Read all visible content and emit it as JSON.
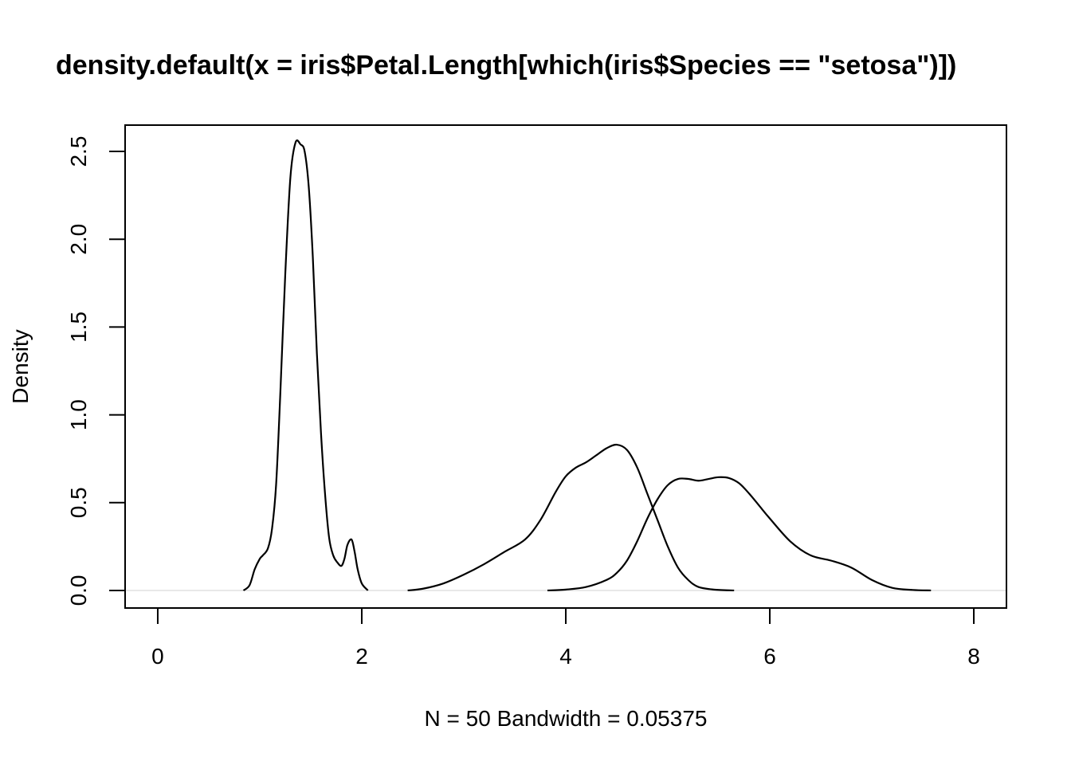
{
  "chart_data": {
    "type": "line",
    "title": "density.default(x = iris$Petal.Length[which(iris$Species == \"setosa\")])",
    "xlabel": "N = 50   Bandwidth = 0.05375",
    "ylabel": "Density",
    "xlim": [
      -0.32,
      8.32
    ],
    "ylim": [
      -0.1,
      2.65
    ],
    "x_ticks": [
      0,
      2,
      4,
      6,
      8
    ],
    "x_tick_labels": [
      "0",
      "2",
      "4",
      "6",
      "8"
    ],
    "y_ticks": [
      0.0,
      0.5,
      1.0,
      1.5,
      2.0,
      2.5
    ],
    "y_tick_labels": [
      "0.0",
      "0.5",
      "1.0",
      "1.5",
      "2.0",
      "2.5"
    ],
    "zero_line": true,
    "grid": false,
    "line_color": "#000000",
    "baseline_color": "#e8e8e8",
    "series": [
      {
        "x": [
          0.84,
          0.9,
          0.95,
          1.0,
          1.03,
          1.08,
          1.12,
          1.16,
          1.2,
          1.25,
          1.3,
          1.35,
          1.4,
          1.44,
          1.48,
          1.52,
          1.56,
          1.6,
          1.64,
          1.68,
          1.72,
          1.76,
          1.8,
          1.83,
          1.86,
          1.9,
          1.93,
          1.96,
          2.0,
          2.06
        ],
        "y": [
          0.0,
          0.03,
          0.12,
          0.18,
          0.2,
          0.24,
          0.35,
          0.6,
          1.1,
          1.8,
          2.35,
          2.55,
          2.54,
          2.5,
          2.3,
          1.9,
          1.35,
          0.9,
          0.55,
          0.3,
          0.2,
          0.16,
          0.14,
          0.18,
          0.26,
          0.29,
          0.22,
          0.12,
          0.04,
          0.0
        ]
      },
      {
        "x": [
          2.45,
          2.6,
          2.8,
          3.0,
          3.2,
          3.4,
          3.6,
          3.75,
          3.9,
          4.0,
          4.1,
          4.2,
          4.3,
          4.4,
          4.5,
          4.6,
          4.7,
          4.8,
          4.9,
          5.0,
          5.1,
          5.2,
          5.3,
          5.45,
          5.65
        ],
        "y": [
          0.0,
          0.01,
          0.04,
          0.09,
          0.15,
          0.22,
          0.29,
          0.4,
          0.56,
          0.65,
          0.7,
          0.73,
          0.77,
          0.81,
          0.83,
          0.8,
          0.7,
          0.55,
          0.4,
          0.25,
          0.13,
          0.06,
          0.02,
          0.005,
          0.0
        ]
      },
      {
        "x": [
          3.82,
          4.0,
          4.2,
          4.4,
          4.5,
          4.6,
          4.7,
          4.8,
          4.9,
          5.0,
          5.1,
          5.2,
          5.3,
          5.4,
          5.5,
          5.6,
          5.7,
          5.8,
          5.9,
          6.0,
          6.2,
          6.4,
          6.6,
          6.8,
          7.0,
          7.2,
          7.4,
          7.58
        ],
        "y": [
          0.0,
          0.005,
          0.02,
          0.06,
          0.1,
          0.17,
          0.28,
          0.41,
          0.52,
          0.6,
          0.635,
          0.635,
          0.625,
          0.635,
          0.645,
          0.64,
          0.61,
          0.55,
          0.48,
          0.41,
          0.28,
          0.2,
          0.17,
          0.13,
          0.06,
          0.015,
          0.003,
          0.0
        ]
      }
    ]
  }
}
